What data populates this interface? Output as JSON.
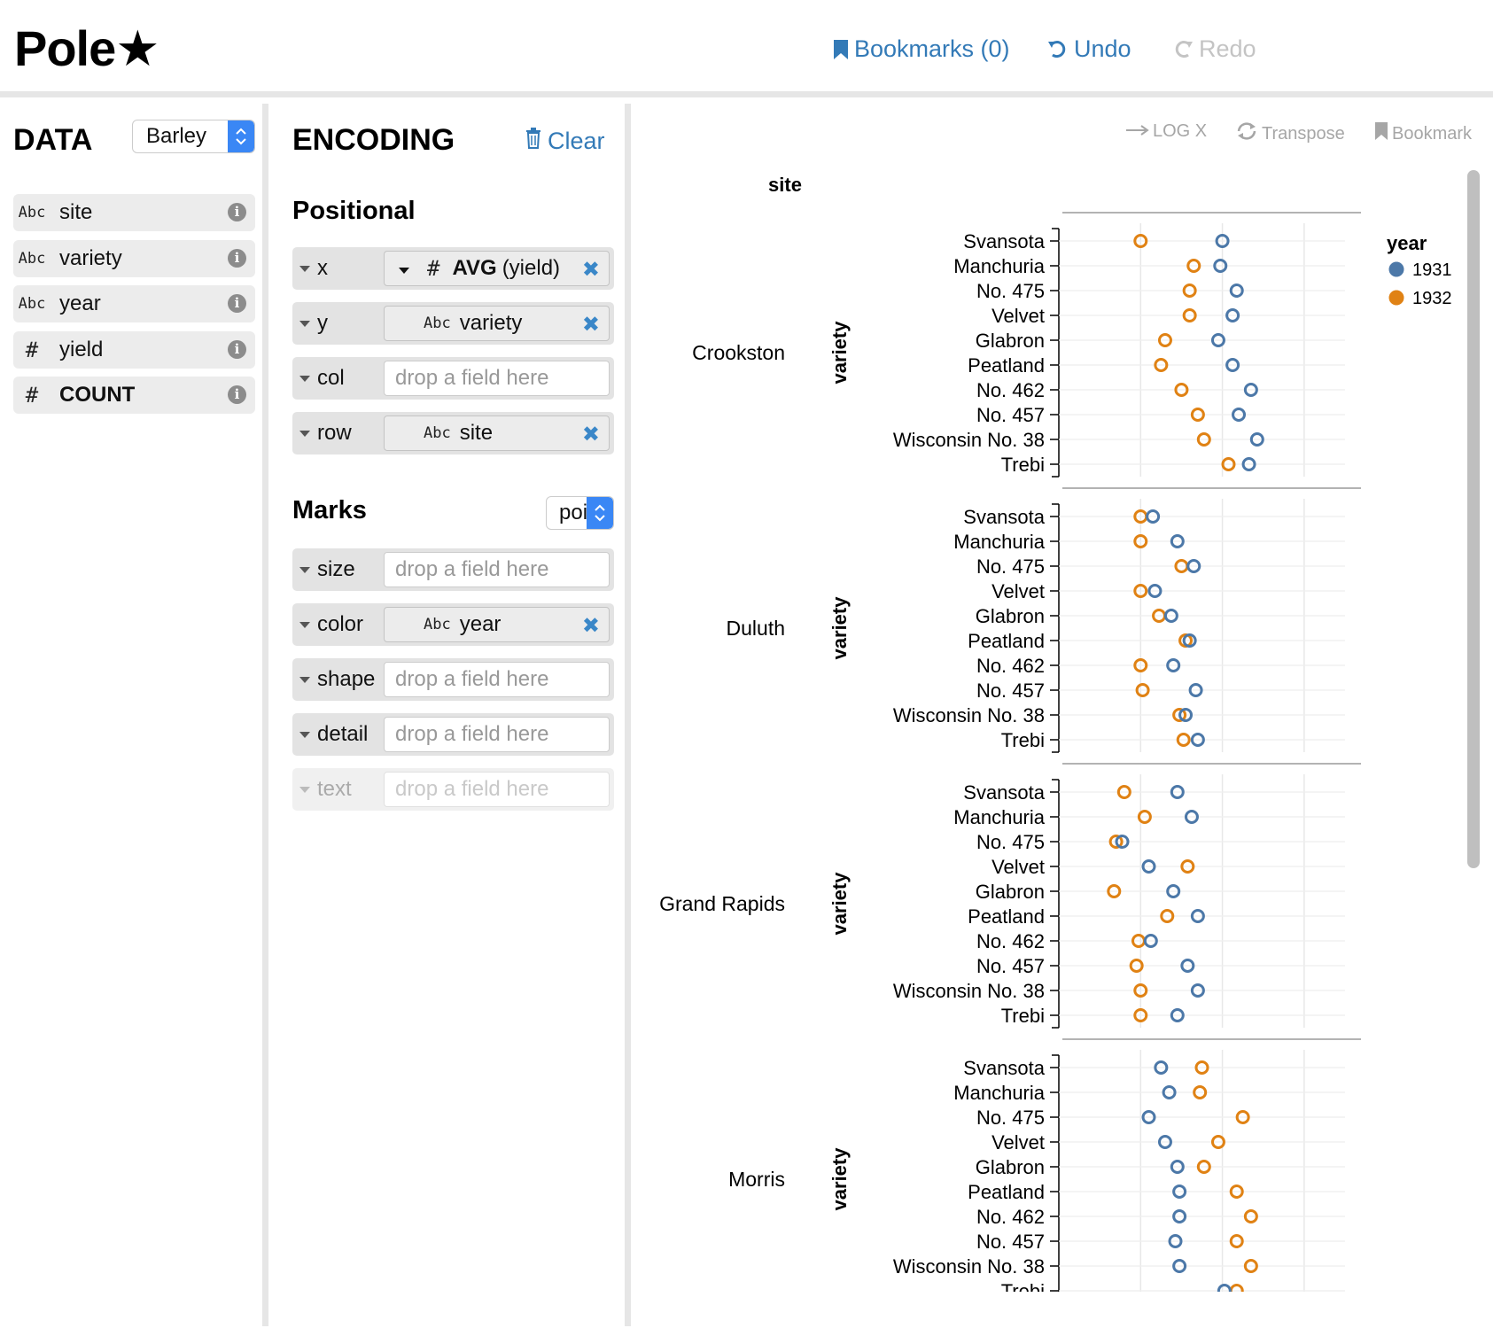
{
  "app": {
    "logo": "Pole★",
    "bookmarks_label": "Bookmarks (0)",
    "undo_label": "Undo",
    "redo_label": "Redo"
  },
  "data_pane": {
    "title": "DATA",
    "dataset": "Barley",
    "fields": [
      {
        "icon": "Abc",
        "name": "site",
        "bold": false
      },
      {
        "icon": "Abc",
        "name": "variety",
        "bold": false
      },
      {
        "icon": "Abc",
        "name": "year",
        "bold": false
      },
      {
        "icon": "#",
        "name": "yield",
        "bold": false
      },
      {
        "icon": "#",
        "name": "COUNT",
        "bold": true
      }
    ],
    "info_glyph": "i"
  },
  "encoding_pane": {
    "title": "ENCODING",
    "clear_label": "Clear",
    "positional_title": "Positional",
    "marks_title": "Marks",
    "mark_type": "point",
    "placeholder": "drop a field here",
    "remove_glyph": "✖",
    "shelves": {
      "x": {
        "label": "x",
        "icon": "#",
        "agg": "AVG",
        "field": "(yield)"
      },
      "y": {
        "label": "y",
        "icon": "Abc",
        "field": "variety"
      },
      "col": {
        "label": "col"
      },
      "row": {
        "label": "row",
        "icon": "Abc",
        "field": "site"
      },
      "size": {
        "label": "size"
      },
      "color": {
        "label": "color",
        "icon": "Abc",
        "field": "year"
      },
      "shape": {
        "label": "shape"
      },
      "detail": {
        "label": "detail"
      },
      "text": {
        "label": "text"
      }
    }
  },
  "vis_pane": {
    "log_x_label": "LOG X",
    "transpose_label": "Transpose",
    "bookmark_label": "Bookmark"
  },
  "chart_data": {
    "type": "scatter",
    "row_header": "site",
    "ylabel": "variety",
    "legend_title": "year",
    "legend_position": "top-right",
    "grid": true,
    "mark": "hollow circle",
    "xlim": [
      0,
      70
    ],
    "x_gridlines": [
      20,
      40,
      60
    ],
    "varieties": [
      "Svansota",
      "Manchuria",
      "No. 475",
      "Velvet",
      "Glabron",
      "Peatland",
      "No. 462",
      "No. 457",
      "Wisconsin No. 38",
      "Trebi"
    ],
    "series": [
      {
        "name": "1931",
        "color": "#4c78a8"
      },
      {
        "name": "1932",
        "color": "#e08214"
      }
    ],
    "rows": [
      {
        "site": "Crookston",
        "v1931": [
          40,
          39.5,
          43.5,
          42.5,
          39,
          42.5,
          47,
          44,
          48.5,
          46.5
        ],
        "v1932": [
          20,
          33,
          32,
          32,
          26,
          25,
          30,
          34,
          35.5,
          41.5
        ]
      },
      {
        "site": "Duluth",
        "v1931": [
          23,
          29,
          33,
          23.5,
          27.5,
          32,
          28,
          33.5,
          31,
          34
        ],
        "v1932": [
          20,
          20,
          30,
          20,
          24.5,
          31,
          20,
          20.5,
          29.5,
          30.5
        ]
      },
      {
        "site": "Grand Rapids",
        "v1931": [
          29,
          32.5,
          15.5,
          22,
          28,
          34,
          22.5,
          31.5,
          34,
          29
        ],
        "v1932": [
          16,
          21,
          14,
          31.5,
          13.5,
          26.5,
          19.5,
          19,
          20,
          20
        ]
      },
      {
        "site": "Morris",
        "v1931": [
          25,
          27,
          22,
          26,
          29,
          29.5,
          29.5,
          28.5,
          29.5,
          40.5
        ],
        "v1932": [
          35,
          34.5,
          45,
          39,
          35.5,
          43.5,
          47,
          43.5,
          47,
          43.5
        ]
      }
    ]
  },
  "colors": {
    "accent": "#337ab7",
    "select_blue": "#3a87f5",
    "divider": "#e6e6e6"
  }
}
